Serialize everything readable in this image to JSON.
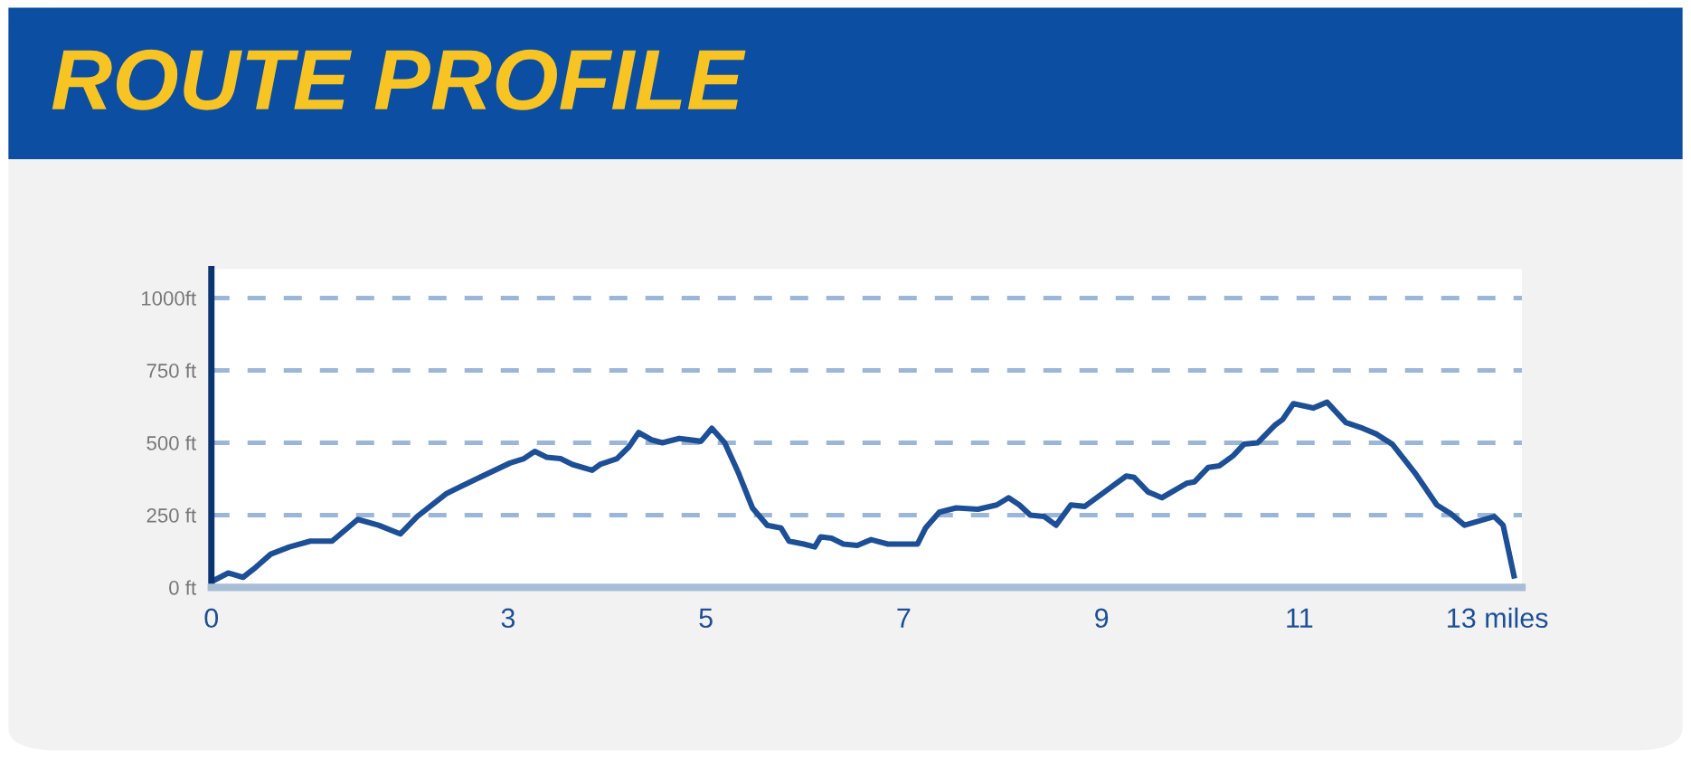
{
  "chart_data": {
    "type": "line",
    "title": "ROUTE PROFILE",
    "x": [
      0,
      0.17,
      0.32,
      0.45,
      0.6,
      0.79,
      1.0,
      1.22,
      1.48,
      1.69,
      1.91,
      2.08,
      2.38,
      2.68,
      3.02,
      3.16,
      3.27,
      3.39,
      3.53,
      3.65,
      3.85,
      3.93,
      4.1,
      4.22,
      4.32,
      4.45,
      4.56,
      4.73,
      4.95,
      5.06,
      5.19,
      5.33,
      5.47,
      5.62,
      5.76,
      5.84,
      5.99,
      6.1,
      6.16,
      6.27,
      6.39,
      6.53,
      6.67,
      6.84,
      7.0,
      7.14,
      7.22,
      7.36,
      7.53,
      7.75,
      7.94,
      8.06,
      8.17,
      8.28,
      8.42,
      8.54,
      8.69,
      8.83,
      9.03,
      9.25,
      9.33,
      9.47,
      9.61,
      9.86,
      9.94,
      10.08,
      10.19,
      10.33,
      10.44,
      10.58,
      10.75,
      10.83,
      10.94,
      11.14,
      11.28,
      11.47,
      11.64,
      11.78,
      11.94,
      12.17,
      12.39,
      12.53,
      12.67,
      12.97,
      13.06,
      13.17
    ],
    "series": [
      {
        "color": "#1d4f96",
        "values": [
          20,
          50,
          35,
          70,
          115,
          140,
          160,
          160,
          235,
          215,
          185,
          245,
          325,
          375,
          430,
          445,
          470,
          450,
          445,
          425,
          405,
          425,
          445,
          485,
          535,
          510,
          500,
          515,
          505,
          550,
          500,
          395,
          275,
          215,
          205,
          160,
          150,
          140,
          175,
          170,
          150,
          145,
          165,
          150,
          150,
          150,
          205,
          260,
          275,
          270,
          285,
          310,
          285,
          250,
          245,
          215,
          285,
          280,
          330,
          385,
          380,
          330,
          310,
          360,
          365,
          415,
          420,
          455,
          495,
          500,
          560,
          580,
          635,
          620,
          640,
          570,
          550,
          530,
          495,
          395,
          285,
          255,
          215,
          245,
          215,
          40
        ]
      }
    ],
    "xlim": [
      0,
      13.25
    ],
    "ylim": [
      0,
      1100
    ],
    "xticks": [
      0,
      3,
      5,
      7,
      9,
      11,
      {
        "value": 13,
        "label": "13 miles"
      }
    ],
    "yticks": [
      {
        "value": 0,
        "label": "0 ft"
      },
      {
        "value": 250,
        "label": "250 ft"
      },
      {
        "value": 500,
        "label": "500 ft"
      },
      {
        "value": 750,
        "label": "750 ft"
      },
      {
        "value": 1000,
        "label": "1000ft"
      }
    ],
    "grid": "y",
    "line_style": "solid",
    "marker": "none",
    "legend": false
  }
}
